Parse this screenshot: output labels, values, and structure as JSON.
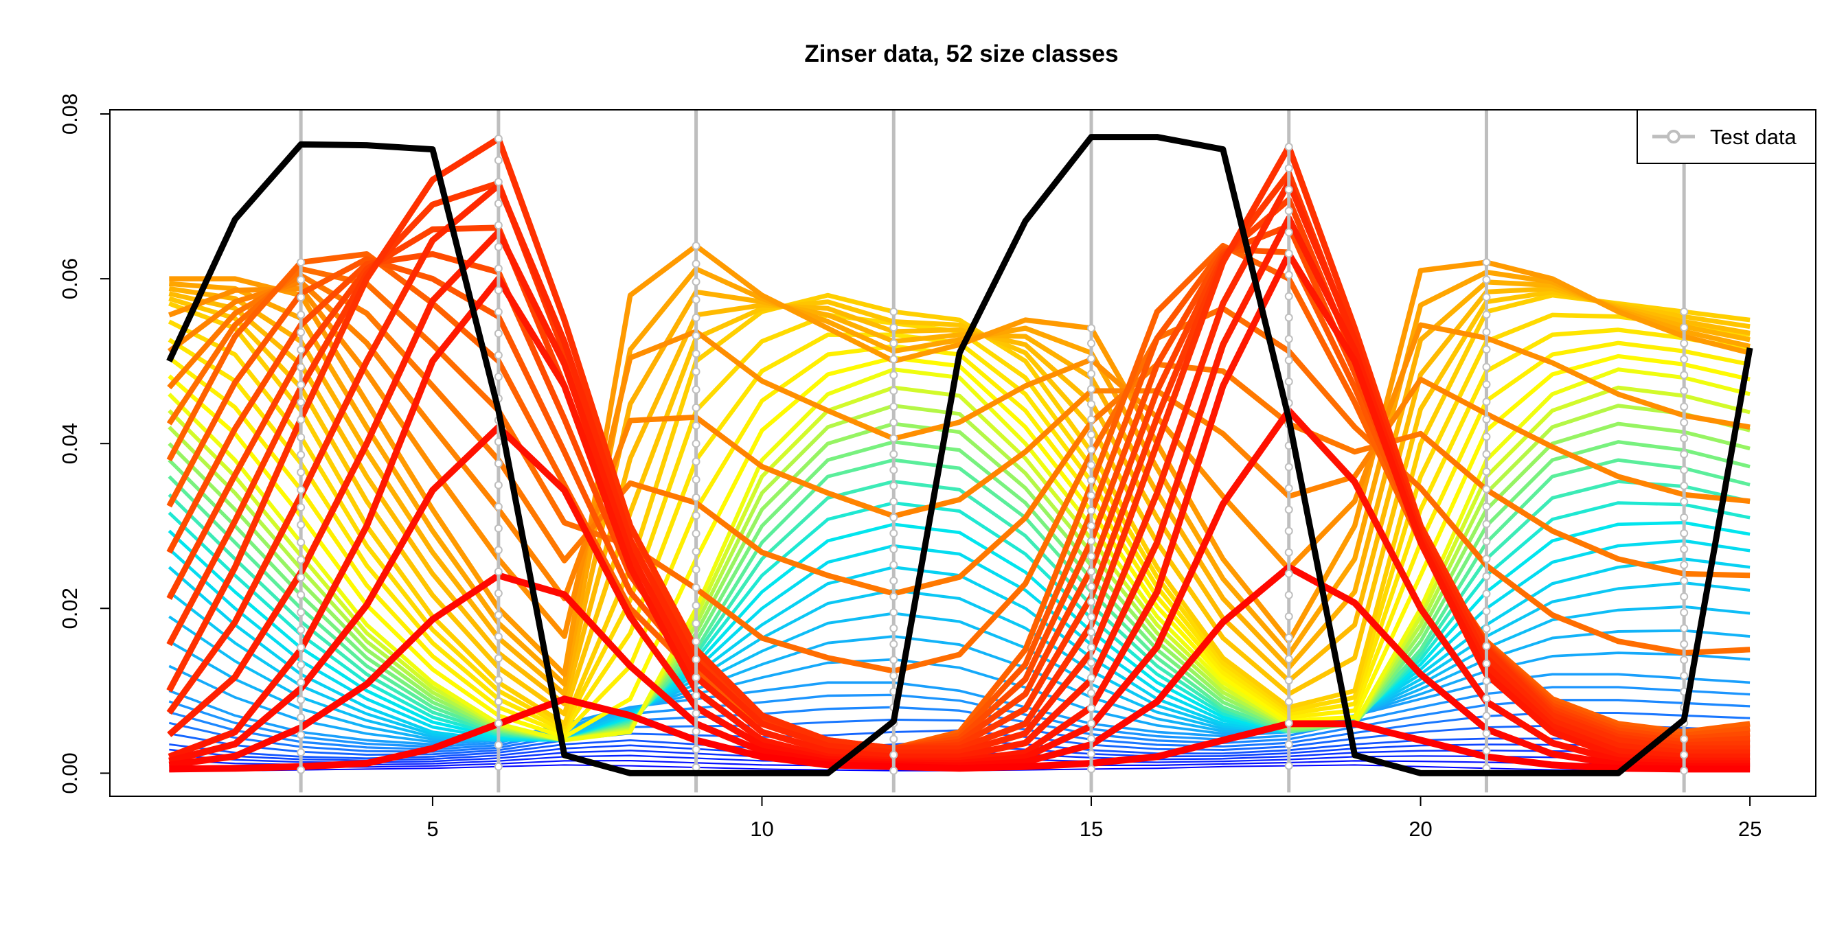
{
  "chart_data": {
    "type": "line",
    "title": "Zinser data, 52 size classes",
    "xlabel": "",
    "ylabel": "",
    "xlim": [
      0.1,
      26.0
    ],
    "ylim": [
      -0.0028,
      0.0805
    ],
    "x_ticks": [
      5,
      10,
      15,
      20,
      25
    ],
    "x_tick_labels": [
      "5",
      "10",
      "15",
      "20",
      "25"
    ],
    "y_ticks": [
      0.0,
      0.02,
      0.04,
      0.06,
      0.08
    ],
    "y_tick_labels": [
      "0.00",
      "0.02",
      "0.04",
      "0.06",
      "0.08"
    ],
    "grid": false,
    "legend": {
      "position": "top-right",
      "entries": [
        {
          "label": "Test data",
          "color": "#bebebe",
          "marker": "circle"
        }
      ]
    },
    "x": [
      1,
      2,
      3,
      4,
      5,
      6,
      7,
      8,
      9,
      10,
      11,
      12,
      13,
      14,
      15,
      16,
      17,
      18,
      19,
      20,
      21,
      22,
      23,
      24,
      25
    ],
    "test_data_x": [
      3,
      6,
      9,
      12,
      15,
      18,
      21,
      24
    ],
    "size_classes": 52,
    "color_scale": [
      "#0000ff",
      "#1e90ff",
      "#00e5ee",
      "#ffff00",
      "#ffa500",
      "#ff4500",
      "#ff0000"
    ],
    "size_class_profiles": [
      {
        "class": 1,
        "values": [
          0.0003,
          0.0003,
          0.0004,
          0.0005,
          0.0006,
          0.0008,
          0.001,
          0.0009,
          0.0007,
          0.0005,
          0.0004,
          0.0003,
          0.0003,
          0.0004,
          0.0005,
          0.0006,
          0.0008,
          0.0009,
          0.001,
          0.0008,
          0.0006,
          0.0004,
          0.0003,
          0.0003,
          0.0003
        ]
      },
      {
        "class": 6,
        "values": [
          0.0035,
          0.0025,
          0.002,
          0.0018,
          0.002,
          0.0025,
          0.0035,
          0.004,
          0.0035,
          0.003,
          0.003,
          0.0035,
          0.004,
          0.0035,
          0.0028,
          0.0024,
          0.0024,
          0.0028,
          0.0035,
          0.004,
          0.0042,
          0.0042,
          0.0042,
          0.004,
          0.0038
        ]
      },
      {
        "class": 11,
        "values": [
          0.01,
          0.007,
          0.005,
          0.004,
          0.0035,
          0.004,
          0.006,
          0.008,
          0.009,
          0.01,
          0.011,
          0.011,
          0.01,
          0.008,
          0.006,
          0.005,
          0.0045,
          0.005,
          0.007,
          0.009,
          0.011,
          0.012,
          0.012,
          0.0115,
          0.011
        ]
      },
      {
        "class": 16,
        "values": [
          0.025,
          0.018,
          0.012,
          0.008,
          0.005,
          0.004,
          0.004,
          0.007,
          0.012,
          0.018,
          0.023,
          0.025,
          0.024,
          0.02,
          0.014,
          0.009,
          0.006,
          0.005,
          0.007,
          0.012,
          0.018,
          0.023,
          0.025,
          0.026,
          0.025
        ]
      },
      {
        "class": 21,
        "values": [
          0.036,
          0.028,
          0.02,
          0.013,
          0.008,
          0.005,
          0.004,
          0.006,
          0.015,
          0.028,
          0.036,
          0.038,
          0.037,
          0.031,
          0.022,
          0.014,
          0.008,
          0.005,
          0.006,
          0.015,
          0.028,
          0.036,
          0.038,
          0.037,
          0.035
        ]
      },
      {
        "class": 26,
        "values": [
          0.046,
          0.038,
          0.028,
          0.018,
          0.011,
          0.006,
          0.004,
          0.005,
          0.02,
          0.038,
          0.046,
          0.049,
          0.048,
          0.04,
          0.03,
          0.019,
          0.011,
          0.006,
          0.006,
          0.02,
          0.038,
          0.046,
          0.049,
          0.048,
          0.046
        ]
      },
      {
        "class": 31,
        "values": [
          0.057,
          0.054,
          0.044,
          0.03,
          0.019,
          0.011,
          0.006,
          0.025,
          0.05,
          0.056,
          0.058,
          0.056,
          0.055,
          0.05,
          0.039,
          0.025,
          0.014,
          0.008,
          0.01,
          0.04,
          0.056,
          0.058,
          0.057,
          0.056,
          0.055
        ]
      },
      {
        "class": 36,
        "values": [
          0.06,
          0.06,
          0.058,
          0.045,
          0.032,
          0.02,
          0.012,
          0.058,
          0.064,
          0.058,
          0.054,
          0.05,
          0.052,
          0.055,
          0.054,
          0.04,
          0.026,
          0.016,
          0.03,
          0.061,
          0.062,
          0.06,
          0.056,
          0.053,
          0.051
        ]
      },
      {
        "class": 41,
        "values": [
          0.038,
          0.053,
          0.062,
          0.063,
          0.057,
          0.05,
          0.035,
          0.02,
          0.012,
          0.006,
          0.004,
          0.003,
          0.005,
          0.015,
          0.035,
          0.056,
          0.064,
          0.06,
          0.045,
          0.028,
          0.016,
          0.009,
          0.006,
          0.005,
          0.006
        ]
      },
      {
        "class": 46,
        "values": [
          0.01,
          0.025,
          0.043,
          0.06,
          0.072,
          0.077,
          0.055,
          0.03,
          0.015,
          0.007,
          0.004,
          0.003,
          0.003,
          0.006,
          0.018,
          0.04,
          0.062,
          0.076,
          0.054,
          0.03,
          0.015,
          0.007,
          0.004,
          0.003,
          0.003
        ]
      },
      {
        "class": 49,
        "values": [
          0.002,
          0.005,
          0.015,
          0.03,
          0.05,
          0.06,
          0.047,
          0.025,
          0.01,
          0.004,
          0.002,
          0.0015,
          0.0015,
          0.0025,
          0.008,
          0.022,
          0.047,
          0.063,
          0.05,
          0.028,
          0.012,
          0.005,
          0.002,
          0.0015,
          0.0015
        ]
      },
      {
        "class": 52,
        "values": [
          0.0005,
          0.0006,
          0.0008,
          0.0012,
          0.003,
          0.006,
          0.009,
          0.007,
          0.004,
          0.002,
          0.001,
          0.0008,
          0.0006,
          0.0008,
          0.0012,
          0.002,
          0.004,
          0.006,
          0.006,
          0.004,
          0.002,
          0.001,
          0.0006,
          0.0005,
          0.0005
        ]
      }
    ],
    "series": [
      {
        "name": "",
        "color": "#000000",
        "values": [
          0.05,
          0.0672,
          0.0763,
          0.0762,
          0.0757,
          0.044,
          0.0022,
          0.0,
          0.0,
          0.0,
          0.0,
          0.0063,
          0.051,
          0.067,
          0.0772,
          0.0772,
          0.0757,
          0.043,
          0.0022,
          0.0,
          0.0,
          0.0,
          0.0,
          0.0065,
          0.0516
        ]
      }
    ]
  }
}
